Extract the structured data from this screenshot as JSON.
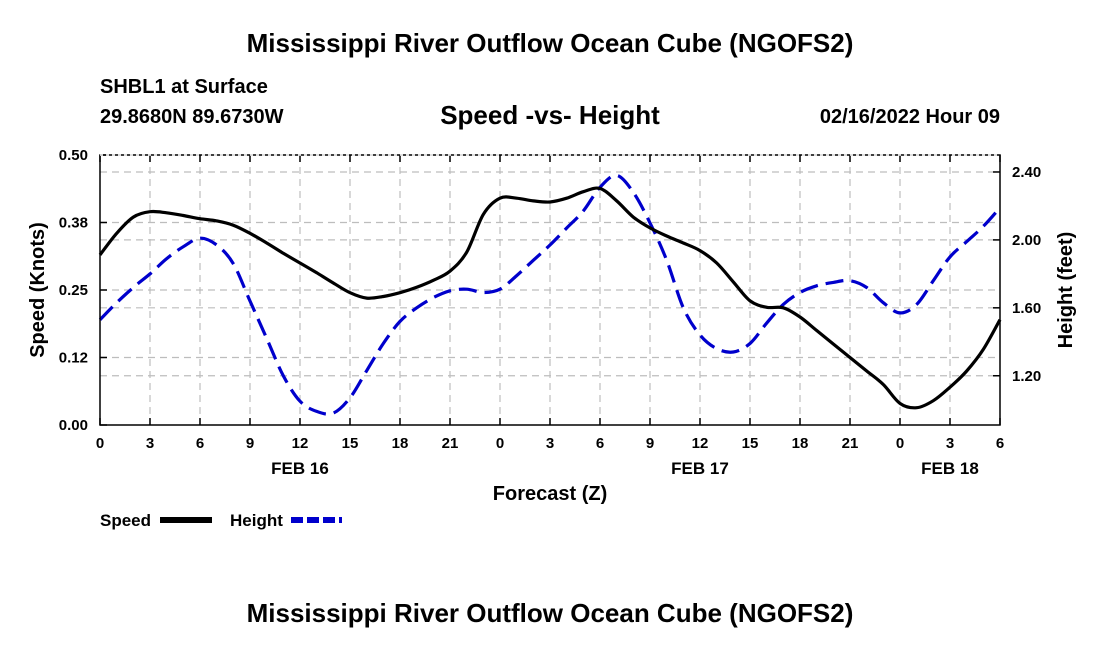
{
  "header": {
    "title": "Mississippi River Outflow Ocean Cube (NGOFS2)",
    "station": "SHBL1 at Surface",
    "coordinates": "29.8680N  89.6730W",
    "subtitle": "Speed -vs- Height",
    "datetime": "02/16/2022 Hour 09"
  },
  "footer": {
    "title": "Mississippi River Outflow Ocean Cube (NGOFS2)"
  },
  "chart_data": {
    "type": "line",
    "xlabel": "Forecast (Z)",
    "ylabel": "Speed (Knots)",
    "y2label": "Height (feet)",
    "x_range": [
      0,
      54
    ],
    "x_ticks": [
      {
        "hour": 0,
        "label": "0"
      },
      {
        "hour": 3,
        "label": "3"
      },
      {
        "hour": 6,
        "label": "6"
      },
      {
        "hour": 9,
        "label": "9"
      },
      {
        "hour": 12,
        "label": "12"
      },
      {
        "hour": 15,
        "label": "15"
      },
      {
        "hour": 18,
        "label": "18"
      },
      {
        "hour": 21,
        "label": "21"
      },
      {
        "hour": 24,
        "label": "0"
      },
      {
        "hour": 27,
        "label": "3"
      },
      {
        "hour": 30,
        "label": "6"
      },
      {
        "hour": 33,
        "label": "9"
      },
      {
        "hour": 36,
        "label": "12"
      },
      {
        "hour": 39,
        "label": "15"
      },
      {
        "hour": 42,
        "label": "18"
      },
      {
        "hour": 45,
        "label": "21"
      },
      {
        "hour": 48,
        "label": "0"
      },
      {
        "hour": 51,
        "label": "3"
      },
      {
        "hour": 54,
        "label": "6"
      }
    ],
    "date_labels": [
      {
        "hour": 12,
        "label": "FEB 16"
      },
      {
        "hour": 36,
        "label": "FEB 17"
      },
      {
        "hour": 51,
        "label": "FEB 18"
      }
    ],
    "ylim": [
      0,
      0.5
    ],
    "y_ticks": [
      {
        "value": 0.0,
        "label": "0.00"
      },
      {
        "value": 0.125,
        "label": "0.12"
      },
      {
        "value": 0.25,
        "label": "0.25"
      },
      {
        "value": 0.375,
        "label": "0.38"
      },
      {
        "value": 0.5,
        "label": "0.50"
      }
    ],
    "y2lim": [
      0.91,
      2.5
    ],
    "y2_ticks": [
      {
        "value": 1.2,
        "label": "1.20"
      },
      {
        "value": 1.6,
        "label": "1.60"
      },
      {
        "value": 2.0,
        "label": "2.00"
      },
      {
        "value": 2.4,
        "label": "2.40"
      }
    ],
    "grid": true,
    "legend": {
      "position": "bottom-left"
    },
    "series": [
      {
        "name": "Speed",
        "axis": "left",
        "color": "#000000",
        "style": "solid",
        "x": [
          0,
          1,
          2,
          3,
          4,
          5,
          6,
          7,
          8,
          9,
          10,
          11,
          12,
          13,
          14,
          15,
          16,
          17,
          18,
          19,
          20,
          21,
          22,
          23,
          24,
          25,
          26,
          27,
          28,
          29,
          30,
          31,
          32,
          33,
          34,
          35,
          36,
          37,
          38,
          39,
          40,
          41,
          42,
          43,
          44,
          45,
          46,
          47,
          48,
          49,
          50,
          51,
          52,
          53,
          54
        ],
        "values": [
          0.315,
          0.355,
          0.385,
          0.395,
          0.393,
          0.388,
          0.382,
          0.378,
          0.37,
          0.355,
          0.337,
          0.318,
          0.3,
          0.282,
          0.263,
          0.245,
          0.235,
          0.238,
          0.245,
          0.255,
          0.268,
          0.285,
          0.32,
          0.39,
          0.42,
          0.42,
          0.415,
          0.413,
          0.42,
          0.432,
          0.438,
          0.415,
          0.385,
          0.365,
          0.35,
          0.337,
          0.323,
          0.3,
          0.265,
          0.23,
          0.218,
          0.217,
          0.2,
          0.175,
          0.15,
          0.125,
          0.1,
          0.075,
          0.04,
          0.032,
          0.045,
          0.07,
          0.1,
          0.14,
          0.195
        ]
      },
      {
        "name": "Height",
        "axis": "right",
        "color": "#0000cc",
        "style": "dashed",
        "x": [
          0,
          1,
          2,
          3,
          4,
          5,
          6,
          7,
          8,
          9,
          10,
          11,
          12,
          13,
          14,
          15,
          16,
          17,
          18,
          19,
          20,
          21,
          22,
          23,
          24,
          25,
          26,
          27,
          28,
          29,
          30,
          31,
          32,
          33,
          34,
          35,
          36,
          37,
          38,
          39,
          40,
          41,
          42,
          43,
          44,
          45,
          46,
          47,
          48,
          49,
          50,
          51,
          52,
          53,
          54
        ],
        "values": [
          1.53,
          1.63,
          1.72,
          1.8,
          1.89,
          1.96,
          2.01,
          1.97,
          1.86,
          1.64,
          1.42,
          1.2,
          1.05,
          0.99,
          0.98,
          1.07,
          1.23,
          1.39,
          1.52,
          1.6,
          1.66,
          1.7,
          1.71,
          1.69,
          1.71,
          1.79,
          1.88,
          1.97,
          2.07,
          2.17,
          2.31,
          2.38,
          2.28,
          2.1,
          1.88,
          1.6,
          1.44,
          1.36,
          1.34,
          1.39,
          1.51,
          1.62,
          1.69,
          1.73,
          1.75,
          1.76,
          1.72,
          1.63,
          1.57,
          1.62,
          1.76,
          1.9,
          1.99,
          2.08,
          2.19
        ]
      }
    ]
  }
}
